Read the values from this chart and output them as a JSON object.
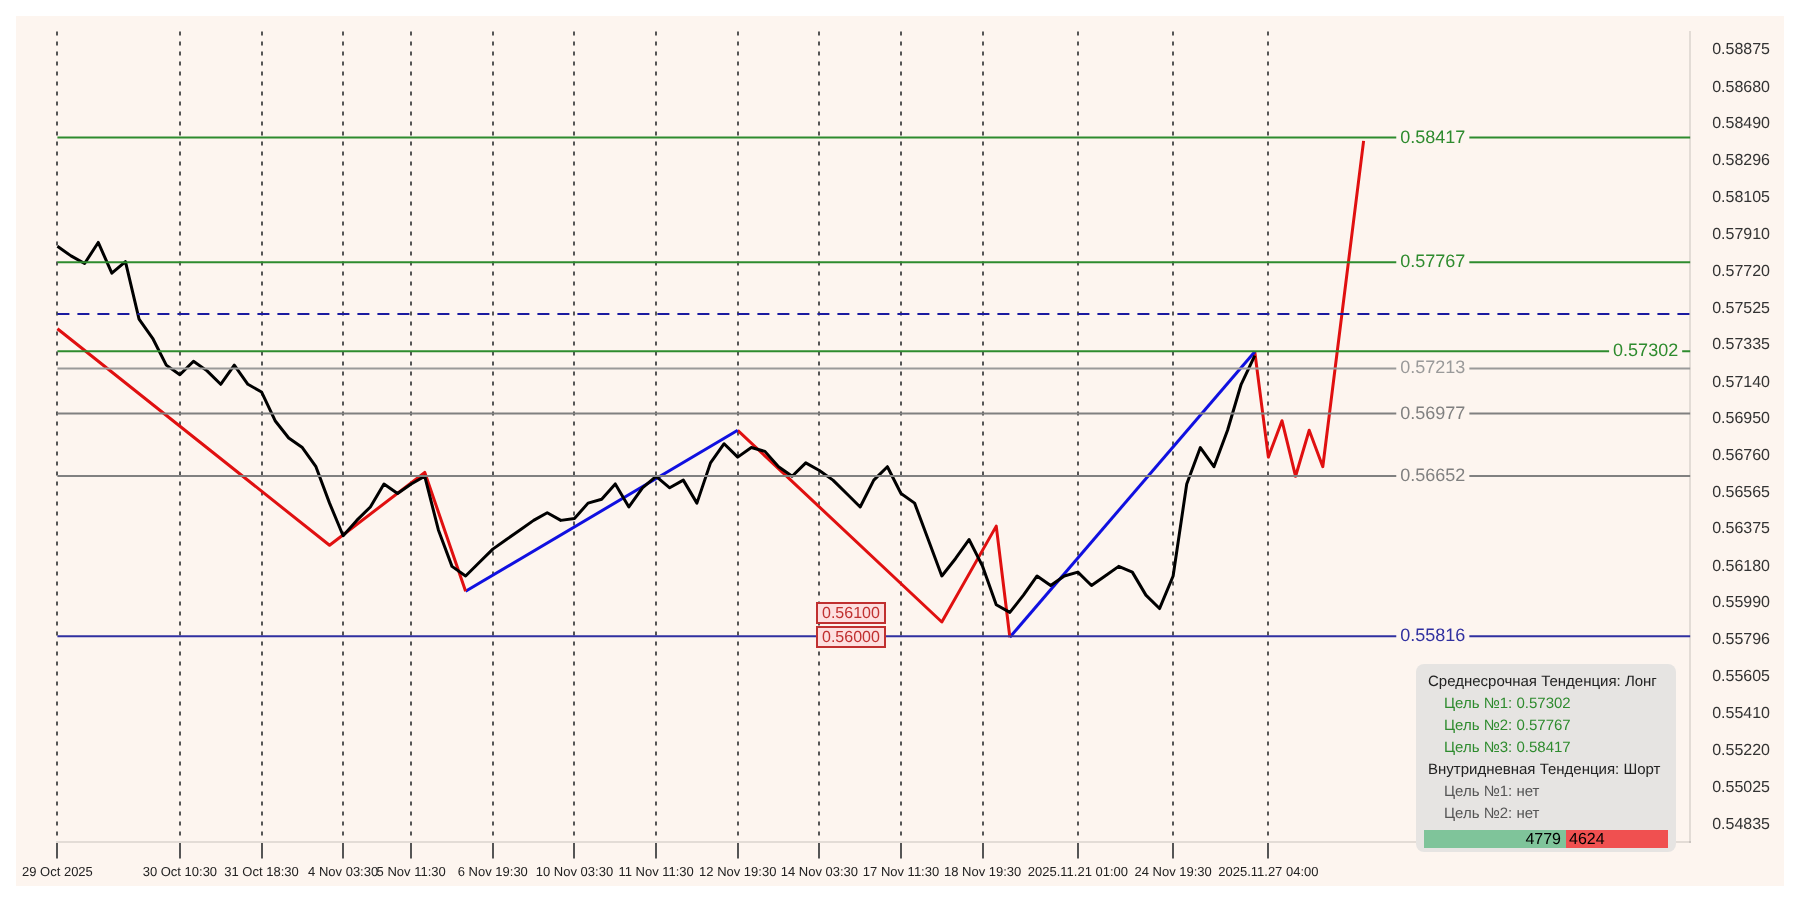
{
  "chart_data": {
    "type": "line",
    "categories": [
      "29 Oct 2025",
      null,
      null,
      null,
      null,
      null,
      null,
      null,
      null,
      "30 Oct 10:30",
      null,
      null,
      null,
      null,
      null,
      "31 Oct 18:30",
      null,
      null,
      null,
      null,
      null,
      "4 Nov 03:30",
      null,
      null,
      null,
      null,
      "5 Nov 11:30",
      null,
      null,
      null,
      null,
      null,
      "6 Nov 19:30",
      null,
      null,
      null,
      null,
      null,
      "10 Nov 03:30",
      null,
      null,
      null,
      null,
      null,
      "11 Nov 11:30",
      null,
      null,
      null,
      null,
      null,
      "12 Nov 19:30",
      null,
      null,
      null,
      null,
      null,
      "14 Nov 03:30",
      null,
      null,
      null,
      null,
      null,
      "17 Nov 11:30",
      null,
      null,
      null,
      null,
      null,
      "18 Nov 19:30",
      null,
      null,
      null,
      null,
      null,
      null,
      "2025.11.21 01:00",
      null,
      null,
      null,
      null,
      null,
      null,
      "24 Nov 19:30",
      null,
      null,
      null,
      null,
      null,
      null,
      "2025.11.27 04:00",
      null,
      null,
      null,
      null,
      null,
      null,
      null,
      null,
      null,
      null,
      null,
      null,
      null,
      null,
      null,
      null,
      null,
      null,
      null,
      null,
      null,
      null,
      null,
      null,
      null,
      null,
      null,
      null,
      null,
      null,
      null
    ],
    "series": [
      {
        "color": "#000000",
        "values": [
          0.5785,
          0.578,
          0.5776,
          0.5787,
          0.5771,
          0.5777,
          0.5747,
          0.5737,
          0.5723,
          0.5718,
          0.5725,
          0.572,
          0.5713,
          0.5723,
          0.5713,
          0.5709,
          0.5694,
          0.5685,
          0.568,
          0.567,
          0.5651,
          0.5634,
          0.5642,
          0.5649,
          0.5661,
          0.5656,
          0.5661,
          0.5665,
          0.5637,
          0.5618,
          0.5613,
          0.562,
          0.5627,
          0.5632,
          0.5637,
          0.5642,
          0.5646,
          0.5642,
          0.5643,
          0.5651,
          0.5653,
          0.5661,
          0.5649,
          0.5659,
          0.5665,
          0.5659,
          0.5663,
          0.5651,
          0.5672,
          0.5682,
          0.5675,
          0.568,
          0.5678,
          0.567,
          0.5665,
          0.5672,
          0.5668,
          0.5663,
          0.5656,
          0.5649,
          0.5663,
          0.567,
          0.5656,
          0.5651,
          0.5632,
          0.5613,
          0.5622,
          0.5632,
          0.5618,
          0.5598,
          0.5594,
          0.5603,
          0.5613,
          0.5608,
          0.5613,
          0.5615,
          0.5608,
          0.5613,
          0.5618,
          0.5615,
          0.5603,
          0.5596,
          0.5613,
          0.5661,
          0.568,
          0.567,
          0.5689,
          0.5713,
          0.5728,
          null,
          null,
          null,
          null,
          null,
          null,
          null,
          null,
          null,
          null,
          null,
          null,
          null,
          null,
          null,
          null,
          null,
          null,
          null,
          null,
          null,
          null,
          null,
          null,
          null,
          null,
          null,
          null,
          null,
          null,
          null,
          null
        ]
      },
      {
        "color": "#e01010",
        "values": [
          0.5742,
          null,
          null,
          null,
          null,
          null,
          null,
          null,
          null,
          null,
          null,
          null,
          null,
          null,
          null,
          null,
          null,
          null,
          null,
          null,
          0.5629,
          null,
          null,
          null,
          null,
          null,
          null,
          0.5667,
          null,
          null,
          0.5605,
          null,
          null,
          null,
          null,
          null,
          null,
          null,
          null,
          null,
          null,
          null,
          null,
          null,
          null,
          null,
          null,
          null,
          null,
          null,
          null,
          null,
          null,
          null,
          null,
          null,
          null,
          null,
          null,
          null,
          null,
          null,
          null,
          null,
          null,
          null,
          null,
          null,
          null,
          null,
          null,
          null,
          null,
          null,
          null,
          null,
          null,
          null,
          null,
          null,
          null,
          null,
          null,
          null,
          null,
          null,
          null,
          null,
          null,
          null,
          null,
          null,
          null,
          null,
          null,
          null,
          null,
          null,
          null,
          null,
          null,
          null,
          null,
          null,
          null,
          null,
          null,
          null,
          null,
          null,
          null,
          null,
          null,
          null,
          null,
          null,
          null,
          null,
          null,
          null,
          null
        ]
      },
      {
        "color": "#1010e0",
        "values": [
          null,
          null,
          null,
          null,
          null,
          null,
          null,
          null,
          null,
          null,
          null,
          null,
          null,
          null,
          null,
          null,
          null,
          null,
          null,
          null,
          null,
          null,
          null,
          null,
          null,
          null,
          null,
          null,
          null,
          null,
          0.5605,
          null,
          null,
          null,
          null,
          null,
          null,
          null,
          null,
          null,
          null,
          null,
          null,
          null,
          null,
          null,
          null,
          null,
          null,
          null,
          0.5689,
          null,
          null,
          null,
          null,
          null,
          null,
          null,
          null,
          null,
          null,
          null,
          null,
          null,
          null,
          null,
          null,
          null,
          null,
          null,
          null,
          null,
          null,
          null,
          null,
          null,
          null,
          null,
          null,
          null,
          null,
          null,
          null,
          null,
          null,
          null,
          null,
          null,
          null,
          null,
          null,
          null,
          null,
          null,
          null,
          null,
          null,
          null,
          null,
          null,
          null,
          null,
          null,
          null,
          null,
          null,
          null,
          null,
          null,
          null,
          null,
          null,
          null,
          null,
          null,
          null,
          null,
          null,
          null,
          null,
          null
        ]
      },
      {
        "color": "#e01010",
        "values": [
          null,
          null,
          null,
          null,
          null,
          null,
          null,
          null,
          null,
          null,
          null,
          null,
          null,
          null,
          null,
          null,
          null,
          null,
          null,
          null,
          null,
          null,
          null,
          null,
          null,
          null,
          null,
          null,
          null,
          null,
          null,
          null,
          null,
          null,
          null,
          null,
          null,
          null,
          null,
          null,
          null,
          null,
          null,
          null,
          null,
          null,
          null,
          null,
          null,
          null,
          0.5689,
          null,
          null,
          null,
          null,
          null,
          null,
          null,
          null,
          null,
          null,
          null,
          null,
          null,
          null,
          0.5589,
          null,
          null,
          null,
          0.5639,
          0.5581,
          null,
          null,
          null,
          null,
          null,
          null,
          null,
          null,
          null,
          null,
          null,
          null,
          null,
          null,
          null,
          null,
          null,
          null,
          null,
          null,
          null,
          null,
          null,
          null,
          null,
          null,
          null,
          null,
          null,
          null,
          null,
          null,
          null,
          null,
          null,
          null,
          null,
          null,
          null,
          null,
          null,
          null,
          null,
          null,
          null,
          null,
          null,
          null,
          null,
          null
        ]
      },
      {
        "color": "#1010e0",
        "values": [
          null,
          null,
          null,
          null,
          null,
          null,
          null,
          null,
          null,
          null,
          null,
          null,
          null,
          null,
          null,
          null,
          null,
          null,
          null,
          null,
          null,
          null,
          null,
          null,
          null,
          null,
          null,
          null,
          null,
          null,
          null,
          null,
          null,
          null,
          null,
          null,
          null,
          null,
          null,
          null,
          null,
          null,
          null,
          null,
          null,
          null,
          null,
          null,
          null,
          null,
          null,
          null,
          null,
          null,
          null,
          null,
          null,
          null,
          null,
          null,
          null,
          null,
          null,
          null,
          null,
          null,
          null,
          null,
          null,
          null,
          0.5581,
          null,
          null,
          null,
          null,
          null,
          null,
          null,
          null,
          null,
          null,
          null,
          null,
          null,
          null,
          null,
          null,
          null,
          0.573,
          null,
          null,
          null,
          null,
          null,
          null,
          null,
          null,
          null,
          null,
          null,
          null,
          null,
          null,
          null,
          null,
          null,
          null,
          null,
          null,
          null,
          null,
          null,
          null,
          null,
          null,
          null,
          null,
          null,
          null,
          null,
          null
        ]
      },
      {
        "color": "#e01010",
        "values": [
          null,
          null,
          null,
          null,
          null,
          null,
          null,
          null,
          null,
          null,
          null,
          null,
          null,
          null,
          null,
          null,
          null,
          null,
          null,
          null,
          null,
          null,
          null,
          null,
          null,
          null,
          null,
          null,
          null,
          null,
          null,
          null,
          null,
          null,
          null,
          null,
          null,
          null,
          null,
          null,
          null,
          null,
          null,
          null,
          null,
          null,
          null,
          null,
          null,
          null,
          null,
          null,
          null,
          null,
          null,
          null,
          null,
          null,
          null,
          null,
          null,
          null,
          null,
          null,
          null,
          null,
          null,
          null,
          null,
          null,
          null,
          null,
          null,
          null,
          null,
          null,
          null,
          null,
          null,
          null,
          null,
          null,
          null,
          null,
          null,
          null,
          null,
          null,
          0.573,
          0.5675,
          0.5694,
          0.5665,
          0.5689,
          0.567,
          null,
          null,
          0.584,
          null,
          null,
          null,
          null,
          null,
          null,
          null,
          null,
          null,
          null,
          null,
          null,
          null,
          null,
          null,
          null,
          null,
          null,
          null,
          null,
          null,
          null,
          null,
          null
        ]
      }
    ],
    "ylim": [
      0.5474,
      0.5897
    ],
    "yticks": [
      {
        "value": 0.54835,
        "label": "0.54835"
      },
      {
        "value": 0.55025,
        "label": "0.55025"
      },
      {
        "value": 0.5522,
        "label": "0.55220"
      },
      {
        "value": 0.5541,
        "label": "0.55410"
      },
      {
        "value": 0.55605,
        "label": "0.55605"
      },
      {
        "value": 0.55796,
        "label": "0.55796"
      },
      {
        "value": 0.5599,
        "label": "0.55990"
      },
      {
        "value": 0.5618,
        "label": "0.56180"
      },
      {
        "value": 0.56375,
        "label": "0.56375"
      },
      {
        "value": 0.56565,
        "label": "0.56565"
      },
      {
        "value": 0.5676,
        "label": "0.56760"
      },
      {
        "value": 0.5695,
        "label": "0.56950"
      },
      {
        "value": 0.5714,
        "label": "0.57140"
      },
      {
        "value": 0.57335,
        "label": "0.57335"
      },
      {
        "value": 0.57525,
        "label": "0.57525"
      },
      {
        "value": 0.5772,
        "label": "0.57720"
      },
      {
        "value": 0.5791,
        "label": "0.57910"
      },
      {
        "value": 0.58105,
        "label": "0.58105"
      },
      {
        "value": 0.58296,
        "label": "0.58296"
      },
      {
        "value": 0.5849,
        "label": "0.58490"
      },
      {
        "value": 0.5868,
        "label": "0.58680"
      },
      {
        "value": 0.58875,
        "label": "0.58875"
      }
    ],
    "grid": "x",
    "legend": false,
    "ref_lines": [
      {
        "axis": "y",
        "value": 0.57497,
        "color": "#1a1aa0",
        "line_style": "dashed"
      },
      {
        "axis": "y",
        "value": 0.57213,
        "label": "0.57213",
        "color": "#9a9a9a"
      },
      {
        "axis": "y",
        "value": 0.58417,
        "label": "0.58417",
        "color": "#2e8b2e"
      },
      {
        "axis": "y",
        "value": 0.57767,
        "label": "0.57767",
        "color": "#2e8b2e"
      },
      {
        "axis": "y",
        "value": 0.57302,
        "label": "0.57302",
        "color": "#2e8b2e"
      },
      {
        "axis": "y",
        "value": 0.56977,
        "label": "0.56977",
        "color": "#808080"
      },
      {
        "axis": "y",
        "value": 0.56652,
        "label": "0.56652",
        "color": "#808080"
      },
      {
        "axis": "y",
        "value": 0.55816,
        "label": "0.55816",
        "color": "#3030a0"
      }
    ],
    "annotations": [
      "0.56100",
      "0.56000",
      "Среднесрочная Тенденция: Лонг",
      "Цель №1: 0.57302",
      "Цель №2: 0.57767",
      "Цель №3: 0.58417",
      "Внутридневная Тенденция: Шорт",
      "Цель №1: нет",
      "Цель №2: нет",
      "4779",
      "4624"
    ]
  }
}
